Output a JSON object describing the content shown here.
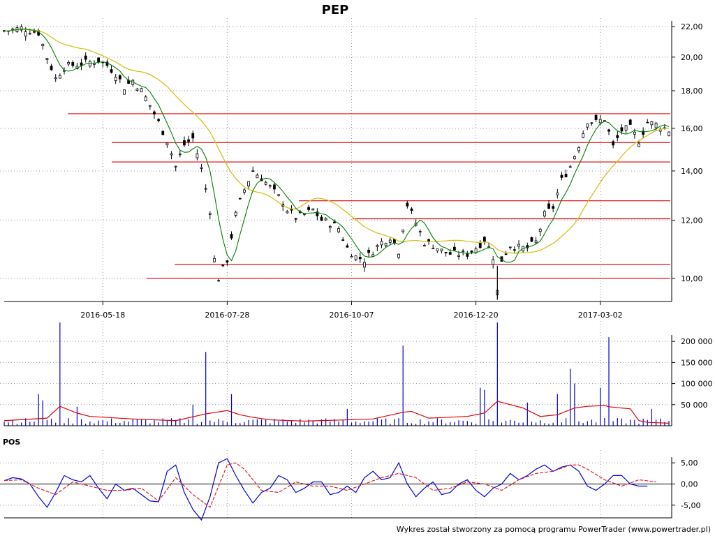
{
  "chart_data": [
    {
      "type": "candlestick",
      "title": "PEP",
      "y_scale": "log",
      "ylim": [
        9.3,
        22.4
      ],
      "y_ticks": [
        "22,00",
        "20,00",
        "18,00",
        "16,00",
        "14,00",
        "12,00",
        "10,00"
      ],
      "y_tick_values": [
        22,
        20,
        18,
        16,
        14,
        12,
        10
      ],
      "x_ticks": [
        "2016-05-18",
        "2016-07-28",
        "2016-10-07",
        "2016-12-20",
        "2017-03-02"
      ],
      "grid": true,
      "close_path": [
        [
          0,
          21.7
        ],
        [
          4,
          21.9
        ],
        [
          8,
          21.6
        ],
        [
          10,
          20.0
        ],
        [
          12,
          18.7
        ],
        [
          14,
          19.4
        ],
        [
          18,
          19.6
        ],
        [
          22,
          19.8
        ],
        [
          24,
          19.5
        ],
        [
          26,
          19.0
        ],
        [
          28,
          18.2
        ],
        [
          30,
          18.6
        ],
        [
          32,
          18.0
        ],
        [
          34,
          17.2
        ],
        [
          36,
          16.3
        ],
        [
          38,
          15.4
        ],
        [
          40,
          14.2
        ],
        [
          42,
          15.2
        ],
        [
          44,
          15.5
        ],
        [
          46,
          14.1
        ],
        [
          48,
          12.4
        ],
        [
          49,
          10.6
        ],
        [
          50,
          10.0
        ],
        [
          52,
          10.6
        ],
        [
          54,
          12.2
        ],
        [
          56,
          13.2
        ],
        [
          58,
          14.0
        ],
        [
          60,
          13.7
        ],
        [
          62,
          13.3
        ],
        [
          64,
          12.9
        ],
        [
          66,
          12.4
        ],
        [
          68,
          12.1
        ],
        [
          70,
          12.2
        ],
        [
          72,
          12.4
        ],
        [
          74,
          12.0
        ],
        [
          76,
          11.9
        ],
        [
          78,
          11.7
        ],
        [
          80,
          11.0
        ],
        [
          82,
          10.7
        ],
        [
          84,
          10.6
        ],
        [
          86,
          10.9
        ],
        [
          88,
          11.2
        ],
        [
          90,
          11.4
        ],
        [
          92,
          10.9
        ],
        [
          94,
          12.6
        ],
        [
          96,
          11.9
        ],
        [
          98,
          11.2
        ],
        [
          100,
          11.1
        ],
        [
          102,
          10.9
        ],
        [
          104,
          10.8
        ],
        [
          106,
          10.8
        ],
        [
          108,
          10.8
        ],
        [
          110,
          11.0
        ],
        [
          112,
          11.3
        ],
        [
          114,
          10.7
        ],
        [
          115,
          9.6
        ],
        [
          116,
          10.6
        ],
        [
          118,
          11.1
        ],
        [
          120,
          11.0
        ],
        [
          122,
          11.0
        ],
        [
          124,
          11.2
        ],
        [
          126,
          12.2
        ],
        [
          128,
          12.5
        ],
        [
          130,
          13.6
        ],
        [
          132,
          14.2
        ],
        [
          134,
          15.2
        ],
        [
          136,
          16.4
        ],
        [
          138,
          16.3
        ],
        [
          140,
          16.5
        ],
        [
          142,
          15.1
        ],
        [
          144,
          15.9
        ],
        [
          146,
          16.0
        ],
        [
          148,
          15.4
        ],
        [
          150,
          16.3
        ],
        [
          152,
          16.2
        ],
        [
          155,
          15.9
        ]
      ],
      "support_lines": [
        16.75,
        15.3,
        14.4,
        12.75,
        12.05,
        10.45,
        10.0
      ],
      "moving_averages": [
        "fast",
        "slow"
      ],
      "colors": {
        "candles": "#000000",
        "fast_ma": "#008000",
        "slow_ma": "#d4c21a",
        "lines": "#e00000",
        "grid": "#888888"
      }
    },
    {
      "type": "bar",
      "series": "volume",
      "y_ticks": [
        "200 000",
        "150 000",
        "100 000",
        "50 000"
      ],
      "y_tick_values": [
        200000,
        150000,
        100000,
        50000
      ],
      "ylim": [
        0,
        240000
      ],
      "baseline": 8000,
      "spikes": [
        [
          8,
          75000
        ],
        [
          9,
          60000
        ],
        [
          13,
          245000
        ],
        [
          17,
          45000
        ],
        [
          44,
          50000
        ],
        [
          47,
          175000
        ],
        [
          53,
          75000
        ],
        [
          80,
          40000
        ],
        [
          93,
          190000
        ],
        [
          111,
          90000
        ],
        [
          112,
          85000
        ],
        [
          115,
          245000
        ],
        [
          122,
          55000
        ],
        [
          129,
          75000
        ],
        [
          132,
          135000
        ],
        [
          133,
          100000
        ],
        [
          139,
          90000
        ],
        [
          141,
          210000
        ],
        [
          151,
          40000
        ]
      ],
      "moving_average": [
        [
          0,
          12000
        ],
        [
          10,
          18000
        ],
        [
          13,
          46000
        ],
        [
          17,
          30000
        ],
        [
          20,
          22000
        ],
        [
          30,
          16000
        ],
        [
          40,
          12000
        ],
        [
          47,
          28000
        ],
        [
          52,
          36000
        ],
        [
          55,
          26000
        ],
        [
          58,
          20000
        ],
        [
          62,
          14000
        ],
        [
          70,
          11000
        ],
        [
          80,
          14000
        ],
        [
          86,
          16000
        ],
        [
          93,
          32000
        ],
        [
          95,
          34000
        ],
        [
          99,
          18000
        ],
        [
          108,
          22000
        ],
        [
          112,
          30000
        ],
        [
          115,
          58000
        ],
        [
          118,
          50000
        ],
        [
          121,
          42000
        ],
        [
          125,
          22000
        ],
        [
          129,
          26000
        ],
        [
          133,
          42000
        ],
        [
          136,
          46000
        ],
        [
          140,
          48000
        ],
        [
          141,
          45000
        ],
        [
          146,
          40000
        ],
        [
          148,
          12000
        ],
        [
          150,
          8000
        ],
        [
          155,
          6000
        ]
      ],
      "colors": {
        "bars": "#0000cc",
        "ma": "#e00000"
      }
    },
    {
      "type": "line",
      "title": "POS",
      "y_ticks": [
        "5,00",
        "0,00",
        "-5,00"
      ],
      "y_tick_values": [
        5,
        0,
        -5
      ],
      "ylim": [
        -8,
        8
      ],
      "series": [
        {
          "values": [
            [
              0,
              0.8
            ],
            [
              2,
              1.5
            ],
            [
              4,
              1.2
            ],
            [
              6,
              0.0
            ],
            [
              8,
              -3.0
            ],
            [
              10,
              -5.5
            ],
            [
              12,
              -2.0
            ],
            [
              14,
              2.0
            ],
            [
              16,
              1.0
            ],
            [
              18,
              0.5
            ],
            [
              20,
              2.0
            ],
            [
              22,
              -1.0
            ],
            [
              24,
              -3.5
            ],
            [
              26,
              0.0
            ],
            [
              28,
              -1.5
            ],
            [
              30,
              -1.0
            ],
            [
              32,
              -2.5
            ],
            [
              34,
              -4.0
            ],
            [
              36,
              -4.2
            ],
            [
              38,
              3.0
            ],
            [
              40,
              4.5
            ],
            [
              42,
              -2.0
            ],
            [
              44,
              -6.0
            ],
            [
              46,
              -8.5
            ],
            [
              48,
              -3.0
            ],
            [
              50,
              5.0
            ],
            [
              52,
              6.0
            ],
            [
              54,
              2.0
            ],
            [
              56,
              -1.5
            ],
            [
              58,
              -4.5
            ],
            [
              60,
              -2.0
            ],
            [
              62,
              -1.0
            ],
            [
              64,
              2.0
            ],
            [
              66,
              1.0
            ],
            [
              68,
              -2.0
            ],
            [
              70,
              -1.0
            ],
            [
              72,
              0.5
            ],
            [
              74,
              0.5
            ],
            [
              76,
              -2.5
            ],
            [
              78,
              -2.0
            ],
            [
              80,
              -0.5
            ],
            [
              82,
              -2.0
            ],
            [
              84,
              1.5
            ],
            [
              86,
              3.0
            ],
            [
              88,
              1.0
            ],
            [
              90,
              1.5
            ],
            [
              92,
              5.0
            ],
            [
              94,
              0.0
            ],
            [
              96,
              -3.0
            ],
            [
              98,
              -1.0
            ],
            [
              100,
              0.5
            ],
            [
              102,
              -2.5
            ],
            [
              104,
              -2.0
            ],
            [
              106,
              0.0
            ],
            [
              108,
              1.0
            ],
            [
              110,
              -1.5
            ],
            [
              112,
              -3.0
            ],
            [
              114,
              -1.0
            ],
            [
              116,
              0.0
            ],
            [
              118,
              2.5
            ],
            [
              120,
              1.0
            ],
            [
              122,
              2.0
            ],
            [
              124,
              3.5
            ],
            [
              126,
              4.5
            ],
            [
              128,
              3.0
            ],
            [
              130,
              4.0
            ],
            [
              132,
              4.5
            ],
            [
              134,
              3.0
            ],
            [
              136,
              -0.5
            ],
            [
              138,
              -1.5
            ],
            [
              140,
              0.0
            ],
            [
              142,
              2.0
            ],
            [
              144,
              2.0
            ],
            [
              146,
              0.0
            ],
            [
              148,
              -0.5
            ],
            [
              150,
              -0.5
            ]
          ],
          "color": "#0000dd"
        },
        {
          "values": [
            [
              0,
              0.8
            ],
            [
              4,
              1.0
            ],
            [
              8,
              -1.0
            ],
            [
              12,
              -2.5
            ],
            [
              16,
              0.5
            ],
            [
              20,
              -0.5
            ],
            [
              24,
              -1.5
            ],
            [
              28,
              -1.5
            ],
            [
              32,
              -1.0
            ],
            [
              36,
              -4.0
            ],
            [
              40,
              1.5
            ],
            [
              44,
              -2.5
            ],
            [
              48,
              -5.5
            ],
            [
              52,
              4.5
            ],
            [
              54,
              5.0
            ],
            [
              56,
              3.5
            ],
            [
              60,
              -1.5
            ],
            [
              64,
              -2.0
            ],
            [
              68,
              0.5
            ],
            [
              72,
              -0.5
            ],
            [
              76,
              -0.5
            ],
            [
              80,
              -1.5
            ],
            [
              84,
              0.0
            ],
            [
              88,
              1.5
            ],
            [
              92,
              2.5
            ],
            [
              96,
              1.5
            ],
            [
              100,
              -1.5
            ],
            [
              104,
              -1.0
            ],
            [
              108,
              0.5
            ],
            [
              112,
              0.0
            ],
            [
              116,
              -1.5
            ],
            [
              120,
              1.0
            ],
            [
              124,
              2.5
            ],
            [
              128,
              3.0
            ],
            [
              132,
              4.5
            ],
            [
              134,
              4.5
            ],
            [
              136,
              3.5
            ],
            [
              140,
              1.0
            ],
            [
              144,
              -0.5
            ],
            [
              148,
              1.0
            ],
            [
              152,
              0.5
            ]
          ],
          "color": "#dd2222",
          "dashed": true
        }
      ]
    }
  ],
  "credit": "Wykres został stworzony za pomocą programu PowerTrader (www.powertrader.pl)"
}
